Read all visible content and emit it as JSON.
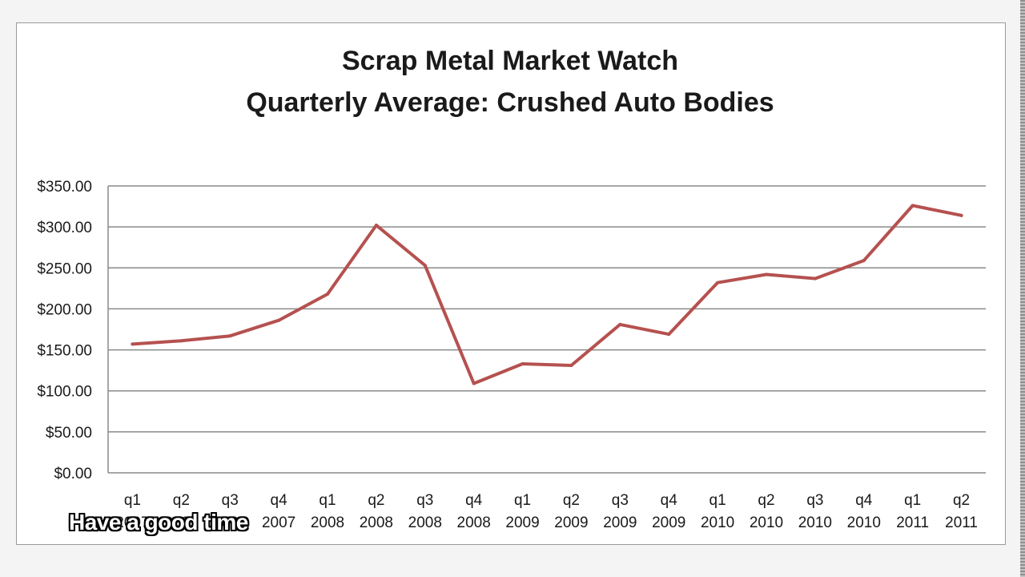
{
  "chart_data": {
    "type": "line",
    "title": "Scrap Metal Market Watch",
    "subtitle": "Quarterly Average: Crushed Auto Bodies",
    "xlabel": "",
    "ylabel": "",
    "ylim": [
      0,
      350
    ],
    "ytick_values": [
      0,
      50,
      100,
      150,
      200,
      250,
      300,
      350
    ],
    "ytick_labels": [
      "$0.00",
      "$50.00",
      "$100.00",
      "$150.00",
      "$200.00",
      "$250.00",
      "$300.00",
      "$350.00"
    ],
    "grid": true,
    "legend": "none",
    "categories": [
      [
        "q1",
        "2007"
      ],
      [
        "q2",
        "2007"
      ],
      [
        "q3",
        "2007"
      ],
      [
        "q4",
        "2007"
      ],
      [
        "q1",
        "2008"
      ],
      [
        "q2",
        "2008"
      ],
      [
        "q3",
        "2008"
      ],
      [
        "q4",
        "2008"
      ],
      [
        "q1",
        "2009"
      ],
      [
        "q2",
        "2009"
      ],
      [
        "q3",
        "2009"
      ],
      [
        "q4",
        "2009"
      ],
      [
        "q1",
        "2010"
      ],
      [
        "q2",
        "2010"
      ],
      [
        "q3",
        "2010"
      ],
      [
        "q4",
        "2010"
      ],
      [
        "q1",
        "2011"
      ],
      [
        "q2",
        "2011"
      ]
    ],
    "series": [
      {
        "color": "#b5514f",
        "values": [
          157,
          161,
          167,
          186,
          218,
          302,
          253,
          109,
          133,
          131,
          181,
          169,
          232,
          242,
          237,
          259,
          326,
          314
        ]
      }
    ]
  },
  "overlay": {
    "caption": "Have a good time"
  }
}
